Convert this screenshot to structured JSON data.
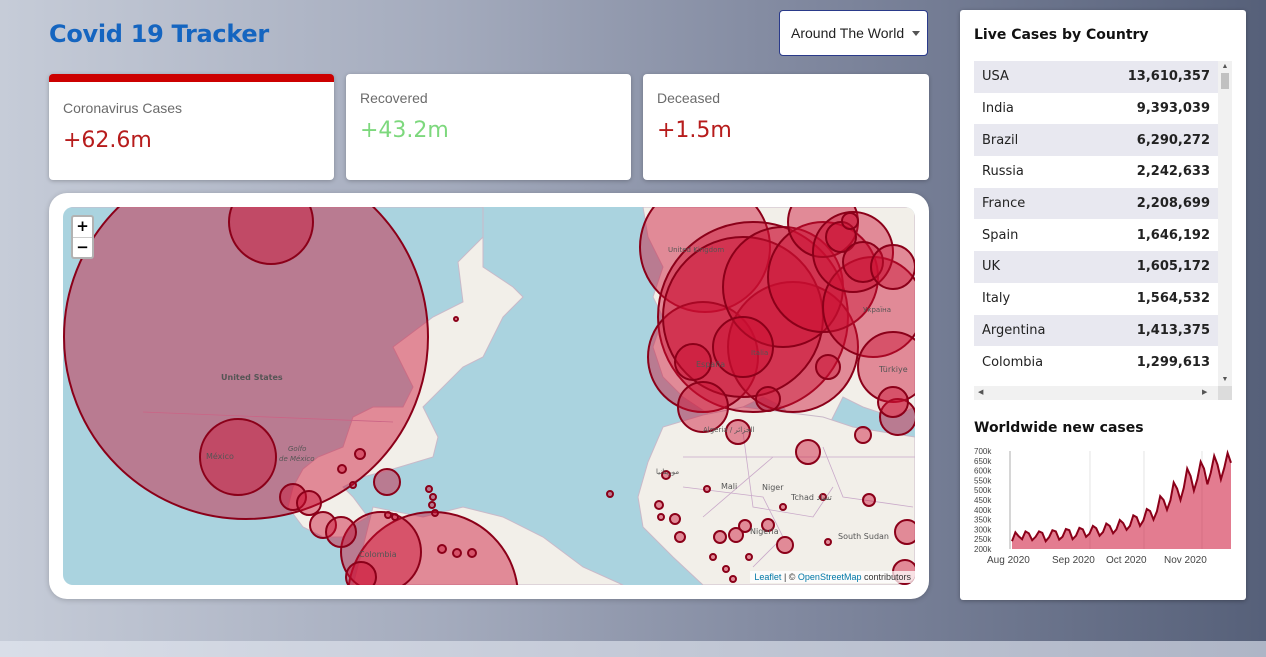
{
  "app": {
    "title": "Covid 19 Tracker"
  },
  "country_select": {
    "selected": "Around The World"
  },
  "info_boxes": [
    {
      "title": "Coronavirus Cases",
      "value": "+62.6m",
      "color": "#b71c1c",
      "selected": true
    },
    {
      "title": "Recovered",
      "value": "+43.2m",
      "color": "#7dd87d",
      "selected": false
    },
    {
      "title": "Deceased",
      "value": "+1.5m",
      "color": "#b71c1c",
      "selected": false
    }
  ],
  "map": {
    "zoom_in": "+",
    "zoom_out": "−",
    "attribution": {
      "leaflet": "Leaflet",
      "separator": " | © ",
      "osm": "OpenStreetMap",
      "suffix": " contributors"
    },
    "labels": {
      "united_states": "United States",
      "mexico": "México",
      "golfo_1": "Golfo",
      "golfo_2": "de México",
      "colombia": "Colombia",
      "espana": "España",
      "mali": "Mali",
      "niger": "Niger",
      "tchad": "Tchad تشاد",
      "nigeria": "Nigeria",
      "south_sudan": "South Sudan",
      "turkiye": "Türkiye",
      "algeria": "Algeria / الجزائر",
      "italia": "Italia",
      "mauritania": "موريتانيا",
      "ukraina": "Україна",
      "united_kingdom": "United Kingdom"
    },
    "circle_color": "#cc1034"
  },
  "live_cases": {
    "title": "Live Cases by Country",
    "rows": [
      {
        "country": "USA",
        "cases": "13,610,357"
      },
      {
        "country": "India",
        "cases": "9,393,039"
      },
      {
        "country": "Brazil",
        "cases": "6,290,272"
      },
      {
        "country": "Russia",
        "cases": "2,242,633"
      },
      {
        "country": "France",
        "cases": "2,208,699"
      },
      {
        "country": "Spain",
        "cases": "1,646,192"
      },
      {
        "country": "UK",
        "cases": "1,605,172"
      },
      {
        "country": "Italy",
        "cases": "1,564,532"
      },
      {
        "country": "Argentina",
        "cases": "1,413,375"
      },
      {
        "country": "Colombia",
        "cases": "1,299,613"
      }
    ]
  },
  "chart_title": "Worldwide new cases",
  "chart_data": {
    "type": "area",
    "title": "Worldwide new cases",
    "xlabel": "",
    "ylabel": "",
    "ylim": [
      200000,
      700000
    ],
    "y_ticks": [
      "700k",
      "650k",
      "600k",
      "550k",
      "500k",
      "450k",
      "400k",
      "350k",
      "300k",
      "250k",
      "200k"
    ],
    "x_ticks": [
      "Aug 2020",
      "Sep 2020",
      "Oct 2020",
      "Nov 2020"
    ],
    "color": "#cc1034",
    "series": [
      {
        "values": [
          240000,
          285000,
          265000,
          250000,
          290000,
          280000,
          245000,
          262000,
          290000,
          282000,
          240000,
          260000,
          296000,
          290000,
          248000,
          262000,
          302000,
          296000,
          250000,
          268000,
          308000,
          300000,
          262000,
          278000,
          318000,
          306000,
          268000,
          286000,
          330000,
          318000,
          280000,
          300000,
          348000,
          332000,
          298000,
          318000,
          372000,
          362000,
          318000,
          346000,
          404000,
          394000,
          350000,
          392000,
          470000,
          450000,
          400000,
          448000,
          540000,
          508000,
          450000,
          512000,
          610000,
          572000,
          498000,
          556000,
          645000,
          610000,
          530000,
          590000,
          675000,
          630000,
          555000,
          615000,
          690000,
          640000
        ]
      }
    ]
  }
}
